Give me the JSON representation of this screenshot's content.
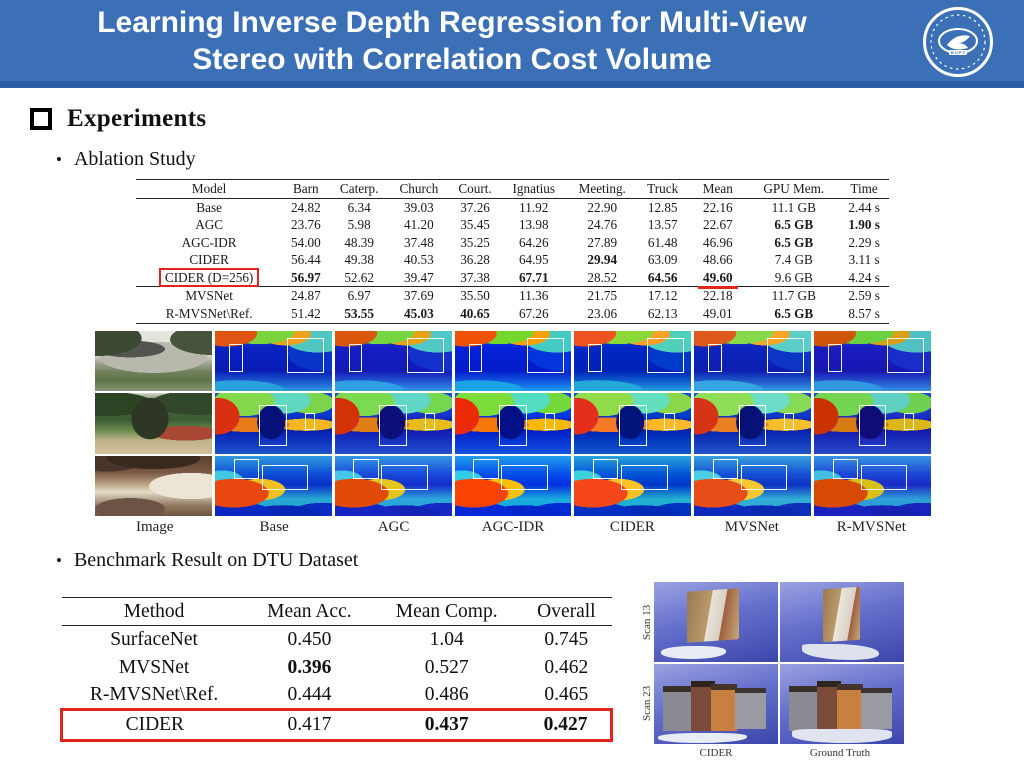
{
  "slide": {
    "title_line1": "Learning Inverse Depth Regression for Multi-View",
    "title_line2": "Stereo with Correlation Cost Volume",
    "logo": "university-seal"
  },
  "sections": {
    "heading": "Experiments",
    "bullet_dot": "•",
    "bullet1": "Ablation Study",
    "bullet2": "Benchmark Result on DTU Dataset"
  },
  "ablation_table": {
    "type": "table",
    "columns": [
      "Model",
      "Barn",
      "Caterp.",
      "Church",
      "Court.",
      "Ignatius",
      "Meeting.",
      "Truck",
      "Mean",
      "GPU Mem.",
      "Time"
    ],
    "rows": [
      {
        "cells": [
          "Base",
          "24.82",
          "6.34",
          "39.03",
          "37.26",
          "11.92",
          "22.90",
          "12.85",
          "22.16",
          "11.1 GB",
          "2.44 s"
        ],
        "bold": []
      },
      {
        "cells": [
          "AGC",
          "23.76",
          "5.98",
          "41.20",
          "35.45",
          "13.98",
          "24.76",
          "13.57",
          "22.67",
          "6.5 GB",
          "1.90 s"
        ],
        "bold": [
          9,
          10
        ]
      },
      {
        "cells": [
          "AGC-IDR",
          "54.00",
          "48.39",
          "37.48",
          "35.25",
          "64.26",
          "27.89",
          "61.48",
          "46.96",
          "6.5 GB",
          "2.29 s"
        ],
        "bold": [
          9
        ]
      },
      {
        "cells": [
          "CIDER",
          "56.44",
          "49.38",
          "40.53",
          "36.28",
          "64.95",
          "29.94",
          "63.09",
          "48.66",
          "7.4 GB",
          "3.11 s"
        ],
        "bold": [
          6
        ]
      },
      {
        "cells": [
          "CIDER (D=256)",
          "56.97",
          "52.62",
          "39.47",
          "37.38",
          "67.71",
          "28.52",
          "64.56",
          "49.60",
          "9.6 GB",
          "4.24 s"
        ],
        "bold": [
          1,
          5,
          7,
          8
        ],
        "red_box_cell": 0,
        "red_underline_cell": 8
      },
      {
        "cells": [
          "MVSNet",
          "24.87",
          "6.97",
          "37.69",
          "35.50",
          "11.36",
          "21.75",
          "17.12",
          "22.18",
          "11.7 GB",
          "2.59 s"
        ],
        "bold": [],
        "separator_above": true
      },
      {
        "cells": [
          "R-MVSNet\\Ref.",
          "51.42",
          "53.55",
          "45.03",
          "40.65",
          "67.26",
          "23.06",
          "62.13",
          "49.01",
          "6.5 GB",
          "8.57 s"
        ],
        "bold": [
          2,
          3,
          4,
          9
        ]
      }
    ]
  },
  "image_grid": {
    "column_labels": [
      "Image",
      "Base",
      "AGC",
      "AGC-IDR",
      "CIDER",
      "MVSNet",
      "R-MVSNet"
    ],
    "row_scenes": [
      "barn-photo",
      "statue-garden-photo",
      "meeting-room-photo"
    ]
  },
  "benchmark_table": {
    "type": "table",
    "columns": [
      "Method",
      "Mean Acc.",
      "Mean Comp.",
      "Overall"
    ],
    "rows": [
      {
        "cells": [
          "SurfaceNet",
          "0.450",
          "1.04",
          "0.745"
        ],
        "bold": []
      },
      {
        "cells": [
          "MVSNet",
          "0.396",
          "0.527",
          "0.462"
        ],
        "bold": [
          1
        ]
      },
      {
        "cells": [
          "R-MVSNet\\Ref.",
          "0.444",
          "0.486",
          "0.465"
        ],
        "bold": []
      },
      {
        "cells": [
          "CIDER",
          "0.417",
          "0.437",
          "0.427"
        ],
        "bold": [
          2,
          3
        ],
        "red_box_row": true
      }
    ]
  },
  "dtu_figure": {
    "row_labels": [
      "Scan 13",
      "Scan 23"
    ],
    "col_labels": [
      "CIDER",
      "Ground Truth"
    ]
  },
  "colors": {
    "header_blue": "#3b70b6",
    "header_strip": "#2a5ca8",
    "highlight_red": "#e2251b"
  }
}
